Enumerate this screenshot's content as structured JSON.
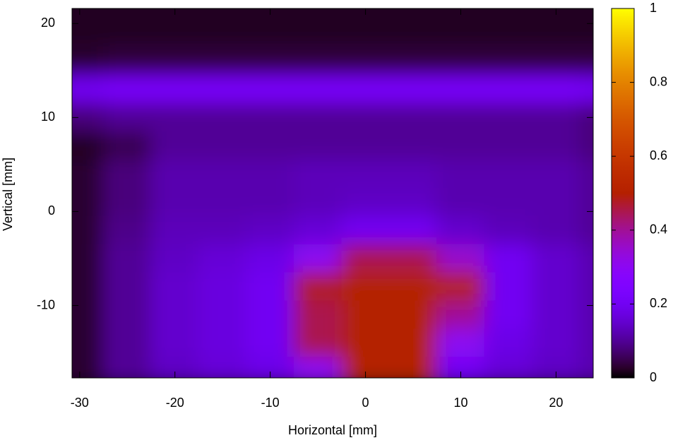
{
  "chart_data": {
    "type": "heatmap",
    "xlabel": "Horizontal [mm]",
    "ylabel": "Vertical [mm]",
    "xlim": [
      -30.8,
      23.9
    ],
    "ylim": [
      -17.7,
      21.6
    ],
    "xticks": [
      -30,
      -20,
      -10,
      0,
      10,
      20
    ],
    "yticks": [
      -10,
      0,
      10,
      20
    ],
    "zlim": [
      0,
      1
    ],
    "zticks": [
      0,
      0.2,
      0.4,
      0.6,
      0.8,
      1
    ],
    "colormap": "gnuplot",
    "x": [
      -30,
      -25,
      -20,
      -15,
      -10,
      -5,
      0,
      5,
      10,
      15,
      20,
      25
    ],
    "y": [
      22,
      19,
      16,
      13,
      10,
      7,
      4,
      1,
      -2,
      -5,
      -8,
      -11,
      -14,
      -17
    ],
    "z": [
      [
        0.02,
        0.02,
        0.02,
        0.02,
        0.02,
        0.02,
        0.02,
        0.02,
        0.02,
        0.02,
        0.02,
        0.02
      ],
      [
        0.02,
        0.02,
        0.02,
        0.02,
        0.02,
        0.02,
        0.02,
        0.02,
        0.02,
        0.02,
        0.02,
        0.02
      ],
      [
        0.03,
        0.04,
        0.04,
        0.04,
        0.04,
        0.04,
        0.04,
        0.04,
        0.04,
        0.04,
        0.04,
        0.04
      ],
      [
        0.2,
        0.22,
        0.22,
        0.22,
        0.22,
        0.22,
        0.22,
        0.22,
        0.22,
        0.22,
        0.22,
        0.2
      ],
      [
        0.08,
        0.1,
        0.1,
        0.1,
        0.1,
        0.1,
        0.1,
        0.1,
        0.1,
        0.1,
        0.1,
        0.08
      ],
      [
        0.02,
        0.05,
        0.1,
        0.1,
        0.1,
        0.1,
        0.1,
        0.1,
        0.1,
        0.1,
        0.1,
        0.08
      ],
      [
        0.03,
        0.08,
        0.12,
        0.12,
        0.12,
        0.13,
        0.13,
        0.13,
        0.12,
        0.12,
        0.12,
        0.1
      ],
      [
        0.03,
        0.08,
        0.12,
        0.12,
        0.12,
        0.13,
        0.14,
        0.14,
        0.12,
        0.12,
        0.12,
        0.1
      ],
      [
        0.03,
        0.09,
        0.13,
        0.13,
        0.14,
        0.16,
        0.2,
        0.2,
        0.15,
        0.13,
        0.12,
        0.1
      ],
      [
        0.03,
        0.1,
        0.14,
        0.16,
        0.18,
        0.3,
        0.45,
        0.45,
        0.35,
        0.2,
        0.15,
        0.12
      ],
      [
        0.03,
        0.1,
        0.15,
        0.17,
        0.2,
        0.48,
        0.5,
        0.5,
        0.5,
        0.2,
        0.15,
        0.12
      ],
      [
        0.03,
        0.1,
        0.15,
        0.17,
        0.2,
        0.45,
        0.5,
        0.5,
        0.4,
        0.2,
        0.15,
        0.12
      ],
      [
        0.03,
        0.1,
        0.15,
        0.17,
        0.2,
        0.45,
        0.5,
        0.5,
        0.3,
        0.18,
        0.15,
        0.12
      ],
      [
        0.03,
        0.1,
        0.14,
        0.16,
        0.18,
        0.3,
        0.5,
        0.5,
        0.2,
        0.16,
        0.14,
        0.12
      ]
    ]
  }
}
